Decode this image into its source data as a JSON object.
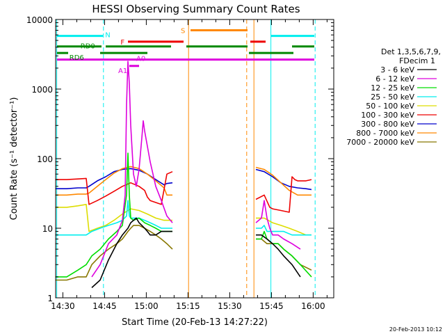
{
  "chart_data": {
    "type": "line",
    "title": "HESSI Observing Summary Count Rates",
    "xlabel": "Start Time (20-Feb-13 14:27:22)",
    "ylabel": "Count Rate (s⁻¹ detector⁻¹)",
    "x_unit": "minutes after 14:27:22",
    "xlim": [
      0,
      100
    ],
    "ylim": [
      1,
      10000
    ],
    "y_scale": "log",
    "x_ticks": [
      {
        "value": 2.6,
        "label": "14:30"
      },
      {
        "value": 17.6,
        "label": "14:45"
      },
      {
        "value": 32.6,
        "label": "15:00"
      },
      {
        "value": 47.6,
        "label": "15:15"
      },
      {
        "value": 62.6,
        "label": "15:30"
      },
      {
        "value": 77.6,
        "label": "15:45"
      },
      {
        "value": 92.6,
        "label": "16:00"
      }
    ],
    "y_ticks": [
      {
        "value": 1,
        "label": "1"
      },
      {
        "value": 10,
        "label": "10"
      },
      {
        "value": 100,
        "label": "100"
      },
      {
        "value": 1000,
        "label": "1000"
      },
      {
        "value": 10000,
        "label": "10000"
      }
    ],
    "legend": {
      "position": "right",
      "header": [
        "Det 1,3,5,6,7,9,",
        "FDecim 1"
      ],
      "entries": [
        {
          "label": "3 - 6 keV",
          "color": "#000000"
        },
        {
          "label": "6 - 12 keV",
          "color": "#dd00dd"
        },
        {
          "label": "12 - 25 keV",
          "color": "#00dd00"
        },
        {
          "label": "25 - 50 keV",
          "color": "#00eeee"
        },
        {
          "label": "50 - 100 keV",
          "color": "#dddd00"
        },
        {
          "label": "100 - 300 keV",
          "color": "#ee0000"
        },
        {
          "label": "300 - 800 keV",
          "color": "#0000cc"
        },
        {
          "label": "800 - 7000 keV",
          "color": "#ff8800"
        },
        {
          "label": "7000 - 20000 keV",
          "color": "#887700"
        }
      ]
    },
    "series": [
      {
        "name": "3 - 6 keV",
        "color": "#000000",
        "x": [
          0,
          4,
          8,
          11,
          13,
          16,
          19,
          22,
          24,
          26,
          27,
          28,
          29,
          30,
          31,
          32,
          33,
          34,
          36,
          38,
          40,
          42,
          45.5,
          71.5,
          72,
          74,
          76,
          78,
          80,
          82,
          85,
          88,
          92,
          93
        ],
        "y": [
          null,
          null,
          null,
          null,
          1.4,
          1.8,
          3.5,
          6,
          8,
          10,
          12,
          13,
          14,
          12,
          11,
          10,
          9,
          8,
          8,
          9,
          9,
          9,
          null,
          null,
          8,
          8,
          7,
          6,
          5,
          4,
          3,
          2,
          null,
          null
        ]
      },
      {
        "name": "6 - 12 keV",
        "color": "#dd00dd",
        "x": [
          0,
          4,
          8,
          11,
          13,
          16,
          19,
          22,
          24,
          25,
          25.5,
          26,
          26.5,
          27,
          28,
          29,
          30,
          31,
          31.5,
          32,
          33,
          34,
          35,
          36,
          38,
          40,
          42,
          45.5,
          71.5,
          72,
          74,
          75,
          76,
          77,
          78,
          80,
          82,
          85,
          88,
          92,
          93
        ],
        "y": [
          null,
          null,
          null,
          null,
          2,
          3,
          6,
          8,
          13,
          30,
          600,
          2500,
          1200,
          300,
          60,
          40,
          70,
          200,
          350,
          250,
          150,
          90,
          60,
          40,
          25,
          15,
          12,
          null,
          null,
          12,
          14,
          25,
          14,
          10,
          8,
          8,
          7,
          6,
          5,
          null,
          null
        ]
      },
      {
        "name": "12 - 25 keV",
        "color": "#00dd00",
        "x": [
          0,
          4,
          8,
          11,
          13,
          16,
          19,
          22,
          24,
          25.5,
          26,
          26.5,
          27,
          28,
          30,
          32,
          34,
          36,
          38,
          40,
          42,
          45.5,
          71.5,
          72,
          74,
          75,
          76,
          78,
          80,
          82,
          85,
          88,
          92,
          93
        ],
        "y": [
          2,
          2,
          2.5,
          3,
          4,
          5,
          7,
          9,
          11,
          30,
          120,
          30,
          14,
          13,
          14,
          12,
          11,
          10,
          9,
          9,
          9,
          null,
          null,
          7,
          7,
          9,
          7,
          6,
          6,
          5,
          4,
          3,
          2,
          null
        ]
      },
      {
        "name": "25 - 50 keV",
        "color": "#00eeee",
        "x": [
          0,
          4,
          8,
          11,
          13,
          16,
          19,
          22,
          24,
          25.5,
          26,
          26.5,
          27,
          28,
          30,
          32,
          34,
          36,
          38,
          40,
          42,
          45.5,
          71.5,
          72,
          74,
          75,
          76,
          78,
          80,
          82,
          85,
          88,
          92,
          93
        ],
        "y": [
          8,
          8,
          8,
          8,
          9,
          10,
          11,
          12,
          13,
          15,
          25,
          15,
          14,
          14,
          14,
          13,
          12,
          11,
          10,
          10,
          10,
          null,
          null,
          10,
          10,
          11,
          9,
          9,
          9,
          9,
          8,
          8,
          8,
          null
        ]
      },
      {
        "name": "50 - 100 keV",
        "color": "#dddd00",
        "x": [
          0,
          4,
          8,
          11,
          12,
          15,
          18,
          21,
          24,
          27,
          30,
          33,
          36,
          39,
          42,
          45.5,
          71.5,
          72,
          75,
          78,
          81,
          84,
          87,
          90,
          92,
          93
        ],
        "y": [
          20,
          20,
          21,
          22,
          9,
          10,
          11,
          13,
          16,
          19,
          18,
          16,
          14,
          13,
          13,
          null,
          null,
          14,
          14,
          12,
          11,
          10,
          9,
          8,
          8,
          null
        ]
      },
      {
        "name": "100 - 300 keV",
        "color": "#ee0000",
        "x": [
          0,
          4,
          8,
          11,
          12,
          15,
          18,
          21,
          24,
          27,
          30,
          32,
          33,
          34,
          38,
          40,
          42,
          45.5,
          71.5,
          72,
          75,
          77,
          78,
          81,
          84,
          85,
          86,
          87,
          90,
          92,
          93
        ],
        "y": [
          50,
          50,
          51,
          52,
          22,
          25,
          29,
          34,
          40,
          45,
          40,
          35,
          28,
          25,
          22,
          60,
          65,
          null,
          null,
          26,
          30,
          20,
          19,
          18,
          17,
          55,
          50,
          48,
          48,
          50,
          null
        ]
      },
      {
        "name": "300 - 800 keV",
        "color": "#0000cc",
        "x": [
          0,
          4,
          8,
          11,
          12,
          15,
          18,
          21,
          24,
          27,
          30,
          33,
          36,
          39,
          40,
          42,
          45.5,
          71.5,
          72,
          75,
          78,
          81,
          84,
          87,
          90,
          92,
          93
        ],
        "y": [
          37,
          37,
          38,
          38,
          40,
          48,
          55,
          65,
          70,
          72,
          68,
          60,
          50,
          42,
          44,
          45,
          null,
          null,
          70,
          65,
          55,
          45,
          40,
          38,
          37,
          36,
          null
        ]
      },
      {
        "name": "800 - 7000 keV",
        "color": "#ff8800",
        "x": [
          0,
          4,
          8,
          11,
          12,
          15,
          18,
          21,
          24,
          27,
          30,
          33,
          36,
          39,
          40,
          42,
          45.5,
          71.5,
          72,
          75,
          78,
          81,
          84,
          87,
          90,
          92,
          93
        ],
        "y": [
          30,
          30,
          31,
          31,
          32,
          40,
          50,
          62,
          72,
          77,
          72,
          60,
          48,
          38,
          30,
          30,
          null,
          null,
          75,
          70,
          58,
          45,
          35,
          30,
          30,
          30,
          null
        ]
      },
      {
        "name": "7000 - 20000 keV",
        "color": "#887700",
        "x": [
          0,
          4,
          8,
          11,
          13,
          16,
          19,
          22,
          24,
          26,
          27,
          28,
          30,
          32,
          34,
          36,
          38,
          40,
          42,
          45.5,
          71.5,
          72,
          74,
          76,
          78,
          80,
          82,
          85,
          88,
          92,
          93
        ],
        "y": [
          1.8,
          1.8,
          2,
          2,
          3,
          4,
          5,
          6,
          7,
          9,
          10,
          11,
          11,
          10,
          9,
          8,
          7,
          6,
          5,
          null,
          null,
          7,
          7,
          6,
          6,
          6,
          5,
          4,
          3,
          2.5,
          null
        ]
      }
    ],
    "flag_bars": [
      {
        "label": "N",
        "color": "#00eeee",
        "level": 5800,
        "segments": [
          [
            0.5,
            17
          ],
          [
            77.5,
            93
          ]
        ]
      },
      {
        "label": "S",
        "color": "#ff8800",
        "level": 7000,
        "segments": [
          [
            48.5,
            69
          ]
        ]
      },
      {
        "label": "F",
        "color": "#ee0000",
        "level": 4800,
        "segments": [
          [
            26,
            46
          ],
          [
            70,
            75.5
          ]
        ]
      },
      {
        "label": "RD0",
        "color": "#008800",
        "level": 4100,
        "segments": [
          [
            0.5,
            16.5
          ],
          [
            18,
            41.5
          ],
          [
            47,
            69
          ],
          [
            85,
            93
          ]
        ]
      },
      {
        "label": "RD6",
        "color": "#008800",
        "level": 3300,
        "segments": [
          [
            0.5,
            4.5
          ],
          [
            16,
            33
          ],
          [
            69.5,
            85.5
          ]
        ]
      },
      {
        "label": "A0",
        "color": "#dd00dd",
        "level": 2650,
        "segments": [
          [
            0.5,
            93
          ]
        ]
      },
      {
        "label": "A1",
        "color": "#dd00dd",
        "level": 2150,
        "segments": [
          [
            26.5,
            30
          ]
        ]
      }
    ],
    "vertical_lines": [
      {
        "x": 0.4,
        "color": "#00eeee",
        "style": "solid"
      },
      {
        "x": 17.2,
        "color": "#00eeee",
        "style": "dashed"
      },
      {
        "x": 47.8,
        "color": "#ff8800",
        "style": "solid"
      },
      {
        "x": 68.7,
        "color": "#ff8800",
        "style": "dashed"
      },
      {
        "x": 71.3,
        "color": "#ff8800",
        "style": "solid"
      },
      {
        "x": 77.4,
        "color": "#00eeee",
        "style": "solid"
      },
      {
        "x": 93.3,
        "color": "#00eeee",
        "style": "dashed"
      }
    ],
    "timestamp": "20-Feb-2013 10:12"
  }
}
